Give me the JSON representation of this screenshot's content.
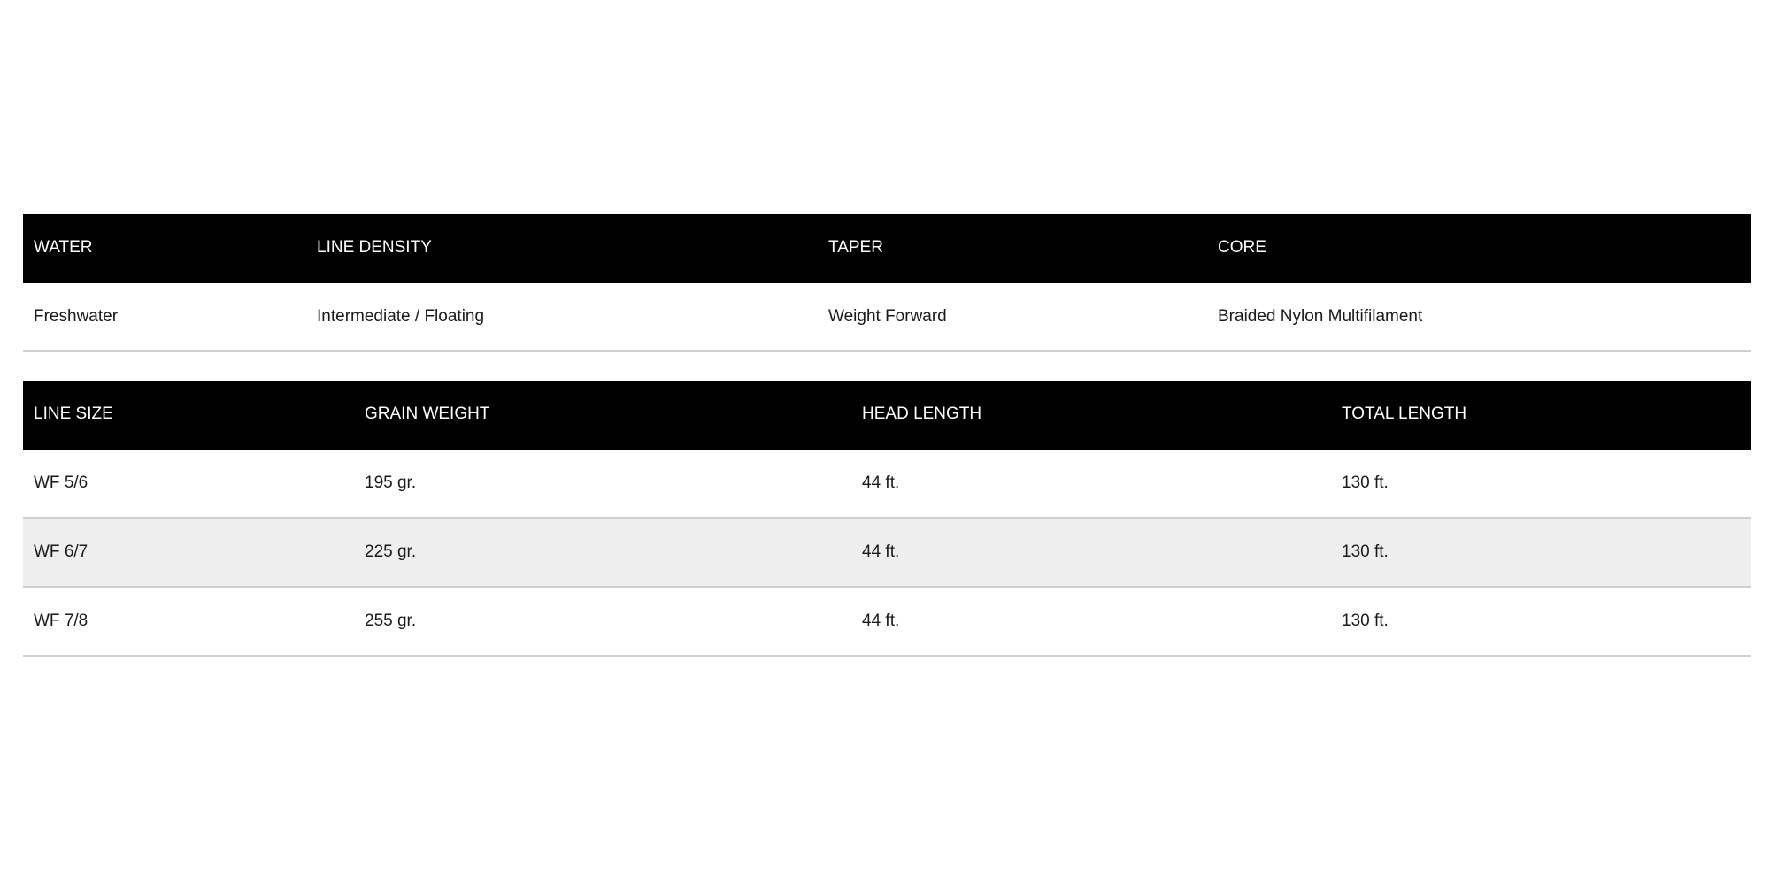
{
  "spec_table": {
    "headers": [
      "WATER",
      "LINE DENSITY",
      "TAPER",
      "CORE"
    ],
    "rows": [
      [
        "Freshwater",
        "Intermediate / Floating",
        "Weight Forward",
        "Braided Nylon Multifilament"
      ]
    ]
  },
  "size_table": {
    "headers": [
      "LINE SIZE",
      "GRAIN WEIGHT",
      "HEAD LENGTH",
      "TOTAL LENGTH"
    ],
    "rows": [
      [
        "WF 5/6",
        "195 gr.",
        "44 ft.",
        "130 ft."
      ],
      [
        "WF 6/7",
        "225 gr.",
        "44 ft.",
        "130 ft."
      ],
      [
        "WF 7/8",
        "255 gr.",
        "44 ft.",
        "130 ft."
      ]
    ]
  },
  "colors": {
    "header_bg": "#000000",
    "header_text": "#ffffff",
    "alt_row_bg": "#eeeeee",
    "divider": "#cfcfcf"
  }
}
